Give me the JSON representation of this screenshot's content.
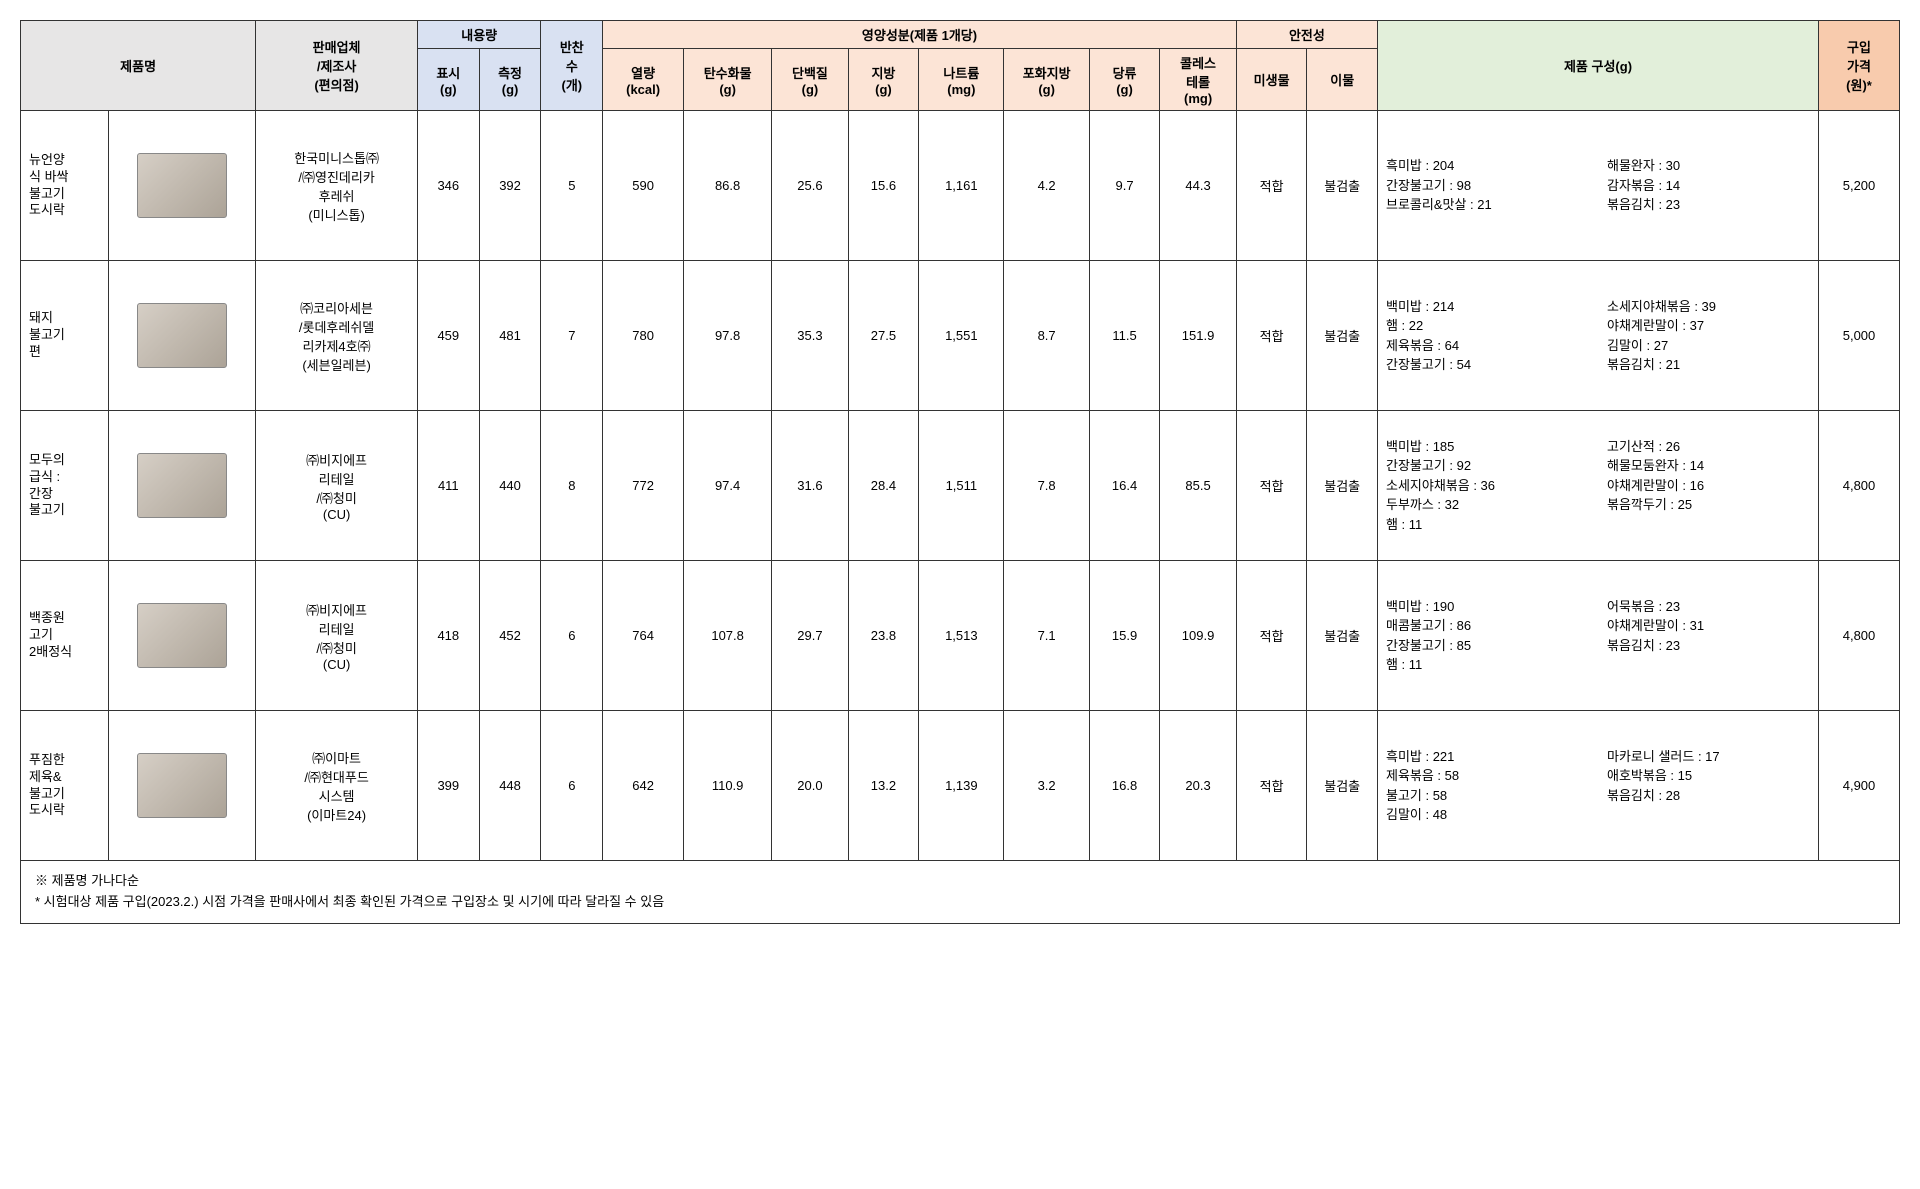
{
  "headers": {
    "productName": "제품명",
    "seller": "판매업체\n/제조사\n(편의점)",
    "content": "내용량",
    "labeled": "표시\n(g)",
    "measured": "측정\n(g)",
    "sideCount": "반찬\n수\n(개)",
    "nutrition": "영양성분(제품  1개당)",
    "calorie": "열량\n(kcal)",
    "carb": "탄수화물\n(g)",
    "protein": "단백질\n(g)",
    "fat": "지방\n(g)",
    "sodium": "나트륨\n(mg)",
    "satfat": "포화지방\n(g)",
    "sugar": "당류\n(g)",
    "chol": "콜레스\n테롤\n(mg)",
    "safety": "안전성",
    "microbe": "미생물",
    "foreign": "이물",
    "composition": "제품 구성(g)",
    "price": "구입\n가격\n(원)*"
  },
  "footnote1": "※ 제품명 가나다순",
  "footnote2": "* 시험대상 제품 구입(2023.2.) 시점 가격을 판매사에서 최종 확인된 가격으로 구입장소 및 시기에 따라 달라질 수 있음",
  "rows": [
    {
      "name": "뉴언양\n식 바싹\n불고기\n도시락",
      "seller": "한국미니스톱㈜\n/㈜영진데리카\n후레쉬\n(미니스톱)",
      "labeled": "346",
      "measured": "392",
      "side": "5",
      "cal": "590",
      "carb": "86.8",
      "prot": "25.6",
      "fat": "15.6",
      "na": "1,161",
      "sfat": "4.2",
      "sugar": "9.7",
      "chol": "44.3",
      "micro": "적합",
      "foreign": "불검출",
      "compL": [
        "흑미밥 : 204",
        "간장불고기 : 98",
        "브로콜리&맛살 : 21"
      ],
      "compR": [
        "해물완자 : 30",
        "감자볶음 : 14",
        "볶음김치 : 23"
      ],
      "price": "5,200"
    },
    {
      "name": "돼지\n불고기\n편",
      "seller": "㈜코리아세븐\n/롯데후레쉬델\n리카제4호㈜\n(세븐일레븐)",
      "labeled": "459",
      "measured": "481",
      "side": "7",
      "cal": "780",
      "carb": "97.8",
      "prot": "35.3",
      "fat": "27.5",
      "na": "1,551",
      "sfat": "8.7",
      "sugar": "11.5",
      "chol": "151.9",
      "micro": "적합",
      "foreign": "불검출",
      "compL": [
        "백미밥 : 214",
        "햄 : 22",
        "제육볶음 : 64",
        "간장불고기 : 54"
      ],
      "compR": [
        "소세지야채볶음 : 39",
        "야채계란말이 : 37",
        "김말이 : 27",
        "볶음김치 : 21"
      ],
      "price": "5,000"
    },
    {
      "name": "모두의\n급식 :\n간장\n불고기",
      "seller": "㈜비지에프\n리테일\n/㈜청미\n(CU)",
      "labeled": "411",
      "measured": "440",
      "side": "8",
      "cal": "772",
      "carb": "97.4",
      "prot": "31.6",
      "fat": "28.4",
      "na": "1,511",
      "sfat": "7.8",
      "sugar": "16.4",
      "chol": "85.5",
      "micro": "적합",
      "foreign": "불검출",
      "compL": [
        "백미밥 : 185",
        "간장불고기 : 92",
        "소세지야채볶음 : 36",
        "두부까스 : 32",
        "햄 : 11"
      ],
      "compR": [
        "고기산적 : 26",
        "해물모둠완자 : 14",
        "야채계란말이 : 16",
        "볶음깍두기 : 25"
      ],
      "price": "4,800"
    },
    {
      "name": "백종원\n고기\n2배정식",
      "seller": "㈜비지에프\n리테일\n/㈜청미\n(CU)",
      "labeled": "418",
      "measured": "452",
      "side": "6",
      "cal": "764",
      "carb": "107.8",
      "prot": "29.7",
      "fat": "23.8",
      "na": "1,513",
      "sfat": "7.1",
      "sugar": "15.9",
      "chol": "109.9",
      "micro": "적합",
      "foreign": "불검출",
      "compL": [
        "백미밥 : 190",
        "매콤불고기 : 86",
        "간장불고기 : 85",
        "햄 : 11"
      ],
      "compR": [
        "어묵볶음 : 23",
        "야채계란말이 : 31",
        "볶음김치 : 23"
      ],
      "price": "4,800"
    },
    {
      "name": "푸짐한\n제육&\n불고기\n도시락",
      "seller": "㈜이마트\n/㈜현대푸드\n시스템\n(이마트24)",
      "labeled": "399",
      "measured": "448",
      "side": "6",
      "cal": "642",
      "carb": "110.9",
      "prot": "20.0",
      "fat": "13.2",
      "na": "1,139",
      "sfat": "3.2",
      "sugar": "16.8",
      "chol": "20.3",
      "micro": "적합",
      "foreign": "불검출",
      "compL": [
        "흑미밥 : 221",
        "제육볶음 : 58",
        "불고기 : 58",
        "김말이 : 48"
      ],
      "compR": [
        "마카로니 샐러드 : 17",
        "애호박볶음 : 15",
        "볶음김치 : 28"
      ],
      "price": "4,900"
    }
  ]
}
